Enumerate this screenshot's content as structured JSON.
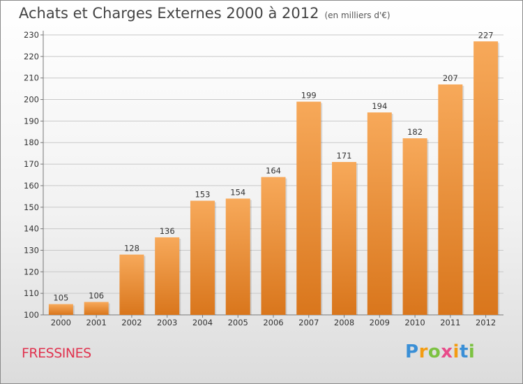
{
  "title": "Achats et Charges Externes 2000 à 2012",
  "unit": "(en milliers d'€)",
  "commune": "FRESSINES",
  "brand": {
    "letters": [
      "P",
      "r",
      "o",
      "x",
      "i",
      "t",
      "i"
    ]
  },
  "colors": {
    "bar_light": "#f7a95a",
    "bar_dark": "#d9761c",
    "grid": "#c8c8c8",
    "commune_text": "#e0334f"
  },
  "chart_data": {
    "type": "bar",
    "title": "Achats et Charges Externes 2000 à 2012",
    "subtitle": "(en milliers d'€)",
    "categories": [
      "2000",
      "2001",
      "2002",
      "2003",
      "2004",
      "2005",
      "2006",
      "2007",
      "2008",
      "2009",
      "2010",
      "2011",
      "2012"
    ],
    "values": [
      105,
      106,
      128,
      136,
      153,
      154,
      164,
      199,
      171,
      194,
      182,
      207,
      227
    ],
    "ylim": [
      100,
      230
    ],
    "yticks": [
      100,
      110,
      120,
      130,
      140,
      150,
      160,
      170,
      180,
      190,
      200,
      210,
      220,
      230
    ],
    "grid": true,
    "data_labels": true
  }
}
